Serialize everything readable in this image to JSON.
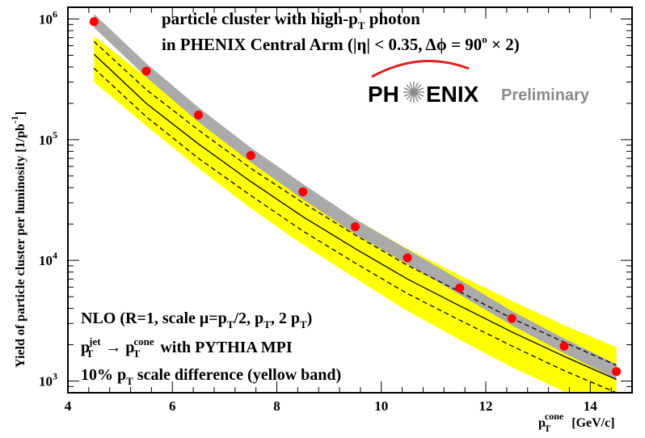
{
  "chart_data": {
    "type": "scatter",
    "title_lines": [
      "particle cluster with high-p_T photon",
      "in PHENIX Central Arm (|η| < 0.35, Δϕ = 90° × 2)"
    ],
    "xlabel": "p_T^cone [GeV/c]",
    "ylabel": "Yield of particle cluster per luminosity [1/pb^-1]",
    "xlim": [
      4,
      14.8
    ],
    "ylim": [
      800,
      1250000
    ],
    "yscale": "log",
    "x_ticks": [
      4,
      6,
      8,
      10,
      12,
      14
    ],
    "y_ticks": [
      {
        "value": 1000,
        "base": "10",
        "exp": "3"
      },
      {
        "value": 10000,
        "base": "10",
        "exp": "4"
      },
      {
        "value": 100000,
        "base": "10",
        "exp": "5"
      },
      {
        "value": 1000000,
        "base": "10",
        "exp": "6"
      }
    ],
    "x": [
      4.5,
      5.5,
      6.5,
      7.5,
      8.5,
      9.5,
      10.5,
      11.5,
      12.5,
      13.5,
      14.5
    ],
    "series": [
      {
        "name": "data",
        "marker": "circle",
        "color": "#ff0000",
        "values": [
          950000,
          370000,
          160000,
          74000,
          37000,
          19000,
          10500,
          5900,
          3300,
          1950,
          1200
        ]
      },
      {
        "name": "data band (gray)",
        "color": "#aaaaaa",
        "lower": [
          850000,
          330000,
          140000,
          65000,
          32000,
          16500,
          9300,
          5200,
          2900,
          1700,
          1040
        ],
        "upper": [
          1100000,
          430000,
          185000,
          86000,
          43000,
          22000,
          12300,
          6900,
          3800,
          2250,
          1380
        ]
      },
      {
        "name": "NLO central",
        "line": "solid",
        "color": "#000000",
        "values": [
          510000,
          200000,
          92000,
          45000,
          23000,
          12500,
          7000,
          4200,
          2550,
          1600,
          1030
        ]
      },
      {
        "name": "NLO scale band upper",
        "line": "dashed",
        "color": "#000000",
        "values": [
          650000,
          260000,
          120000,
          58000,
          30000,
          16200,
          9100,
          5500,
          3300,
          2100,
          1350
        ]
      },
      {
        "name": "NLO scale band lower",
        "line": "dashed",
        "color": "#000000",
        "values": [
          390000,
          155000,
          70000,
          34500,
          17500,
          9500,
          5300,
          3200,
          1950,
          1220,
          800
        ]
      },
      {
        "name": "10% p_T scale difference (yellow band)",
        "color": "#ffff00",
        "lower": [
          300000,
          130000,
          58000,
          27000,
          13500,
          7100,
          3800,
          2200,
          1300,
          820,
          540
        ],
        "upper": [
          720000,
          330000,
          160000,
          80000,
          41000,
          22000,
          12500,
          7500,
          4600,
          2900,
          1900
        ]
      }
    ],
    "annotations": {
      "logo_left": "PH",
      "logo_right": "ENIX",
      "preliminary": "Preliminary",
      "nlo_lines": [
        "NLO (R=1, scale μ=p_T/2, p_T, 2 p_T)",
        "p_T^jet → p_T^cone with PYTHIA MPI",
        "10% p_T scale difference (yellow band)"
      ]
    },
    "colors": {
      "data": "#ff0000",
      "gray_band": "#aaaaaa",
      "yellow_band": "#ffff00",
      "frame": "#000000"
    }
  }
}
